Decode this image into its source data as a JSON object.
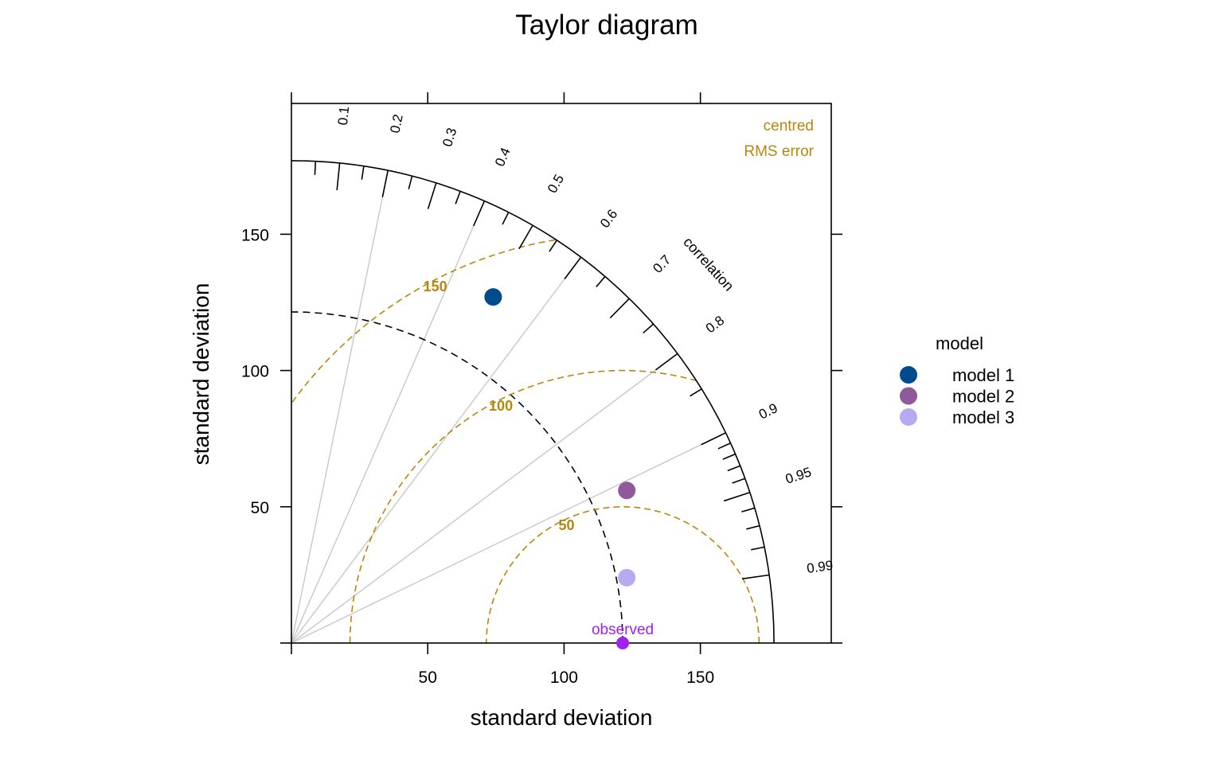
{
  "chart_data": {
    "type": "scatter",
    "subtype": "taylor-diagram",
    "title": "Taylor diagram",
    "xlabel": "standard deviation",
    "ylabel": "standard deviation",
    "xlim": [
      0,
      198
    ],
    "ylim": [
      0,
      198
    ],
    "x_ticks": [
      50,
      100,
      150
    ],
    "y_ticks": [
      50,
      100,
      150
    ],
    "max_sd": 177,
    "observed": {
      "label": "observed",
      "sd": 121.5,
      "color": "#a020f0"
    },
    "correlation_title": "correlation",
    "correlation_labels": [
      0.1,
      0.2,
      0.3,
      0.4,
      0.5,
      0.6,
      0.7,
      0.8,
      0.9,
      0.95,
      0.99
    ],
    "correlation_lines": [
      0.2,
      0.4,
      0.6,
      0.8,
      0.9
    ],
    "rms_title": [
      "centred",
      "RMS error"
    ],
    "rms_contours": [
      50,
      100,
      150
    ],
    "rms_color": "#b8860b",
    "legend_title": "model",
    "series": [
      {
        "name": "model 1",
        "x": 74,
        "y": 127,
        "color": "#004b8d"
      },
      {
        "name": "model 2",
        "x": 123,
        "y": 56,
        "color": "#8e5a99"
      },
      {
        "name": "model 3",
        "x": 123,
        "y": 24,
        "color": "#b9a9f0"
      }
    ]
  }
}
